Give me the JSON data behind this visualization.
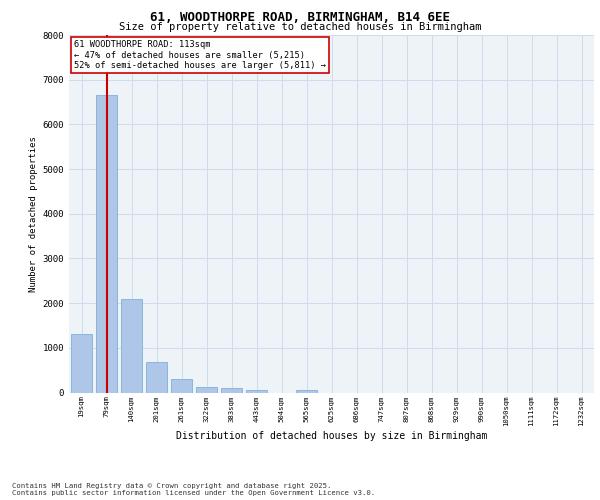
{
  "title1": "61, WOODTHORPE ROAD, BIRMINGHAM, B14 6EE",
  "title2": "Size of property relative to detached houses in Birmingham",
  "xlabel": "Distribution of detached houses by size in Birmingham",
  "ylabel": "Number of detached properties",
  "categories": [
    "19sqm",
    "79sqm",
    "140sqm",
    "201sqm",
    "261sqm",
    "322sqm",
    "383sqm",
    "443sqm",
    "504sqm",
    "565sqm",
    "625sqm",
    "686sqm",
    "747sqm",
    "807sqm",
    "868sqm",
    "929sqm",
    "990sqm",
    "1050sqm",
    "1111sqm",
    "1172sqm",
    "1232sqm"
  ],
  "values": [
    1300,
    6650,
    2100,
    680,
    300,
    130,
    90,
    60,
    0,
    60,
    0,
    0,
    0,
    0,
    0,
    0,
    0,
    0,
    0,
    0,
    0
  ],
  "bar_color": "#aec6e8",
  "bar_edge_color": "#6fa8d6",
  "vline_color": "#cc0000",
  "vline_x": 1.0,
  "ylim": [
    0,
    8000
  ],
  "yticks": [
    0,
    1000,
    2000,
    3000,
    4000,
    5000,
    6000,
    7000,
    8000
  ],
  "annotation_text": "61 WOODTHORPE ROAD: 113sqm\n← 47% of detached houses are smaller (5,215)\n52% of semi-detached houses are larger (5,811) →",
  "annotation_box_color": "#ffffff",
  "annotation_box_edge": "#cc0000",
  "grid_color": "#ccddee",
  "bg_color": "#eef3f8",
  "footer1": "Contains HM Land Registry data © Crown copyright and database right 2025.",
  "footer2": "Contains public sector information licensed under the Open Government Licence v3.0."
}
